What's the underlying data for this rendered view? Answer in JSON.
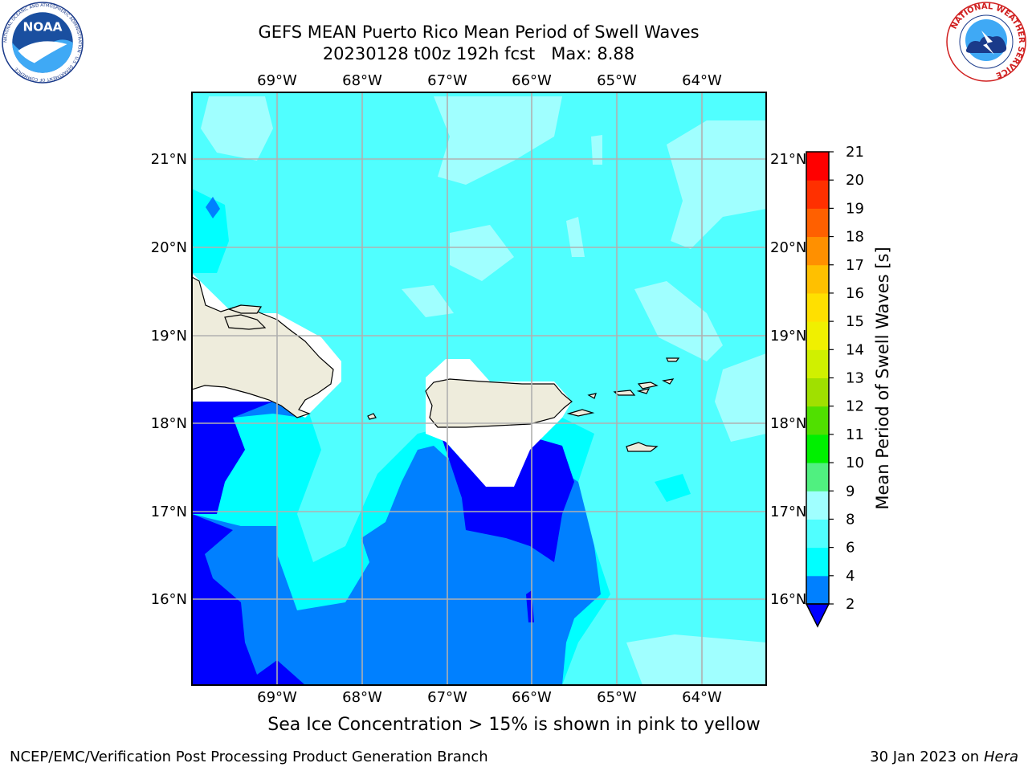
{
  "title": {
    "line1": "GEFS MEAN Puerto Rico Mean Period of Swell Waves",
    "line2": "20230128 t00z 192h fcst   Max: 8.88"
  },
  "logos": {
    "left": {
      "icon": "noaa-logo",
      "text": "NOAA",
      "ring_text": "NATIONAL OCEANIC AND ATMOSPHERIC ADMINISTRATION · U.S. DEPARTMENT OF COMMERCE"
    },
    "right": {
      "icon": "nws-logo",
      "ring_text": "NATIONAL WEATHER SERVICE"
    }
  },
  "map": {
    "lon_labels": [
      "69°W",
      "68°W",
      "67°W",
      "66°W",
      "65°W",
      "64°W"
    ],
    "lat_labels": [
      "21°N",
      "20°N",
      "19°N",
      "18°N",
      "17°N",
      "16°N"
    ],
    "grid": true,
    "land_color": "#eeecdc",
    "missing_color": "#ffffff"
  },
  "colorbar": {
    "label": "Mean Period of Swell Waves [s]",
    "ticks": [
      "2",
      "4",
      "6",
      "8",
      "9",
      "10",
      "11",
      "12",
      "13",
      "14",
      "15",
      "16",
      "17",
      "18",
      "19",
      "20",
      "21"
    ],
    "colors": [
      "#0000ff",
      "#0080ff",
      "#00ffff",
      "#50ffff",
      "#a0ffff",
      "#50f080",
      "#00f000",
      "#50e000",
      "#a0e000",
      "#d0f000",
      "#f0f000",
      "#ffe000",
      "#ffc000",
      "#ff9000",
      "#ff6000",
      "#ff3000",
      "#ff0000"
    ],
    "extend_color": "#0000ff"
  },
  "note": "Sea Ice Concentration > 15% is shown in pink to yellow",
  "footer": {
    "left": "NCEP/EMC/Verification Post Processing Product Generation Branch",
    "right_date": "30 Jan 2023 on ",
    "right_machine": "Hera"
  }
}
